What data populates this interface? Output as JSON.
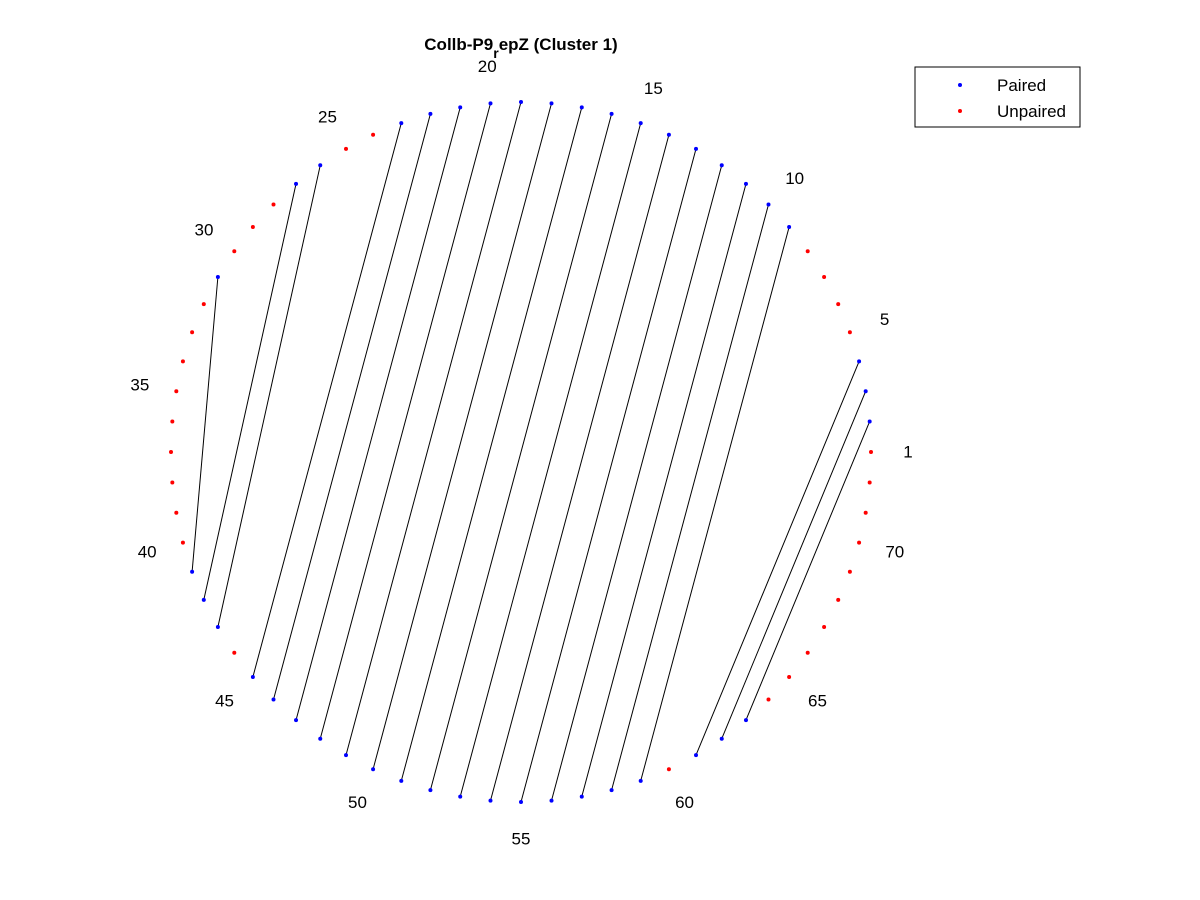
{
  "title": {
    "main": "Collb-P9",
    "subscript": "r",
    "rest": "epZ (Cluster 1)"
  },
  "legend": {
    "location": "top-right",
    "entries": [
      {
        "label": "Paired",
        "color": "#0000ff"
      },
      {
        "label": "Unpaired",
        "color": "#ff0000"
      }
    ]
  },
  "colors": {
    "paired": "#0000ff",
    "unpaired": "#ff0000",
    "bond": "#000000",
    "text": "#000000"
  },
  "chart_data": {
    "type": "circle-plot",
    "sequence_length": 72,
    "numbering": "counter-clockwise, starting at the right",
    "index_labels": [
      1,
      5,
      10,
      15,
      20,
      25,
      30,
      35,
      40,
      45,
      50,
      55,
      60,
      65,
      70
    ],
    "pairs": [
      [
        2,
        63
      ],
      [
        3,
        62
      ],
      [
        4,
        61
      ],
      [
        9,
        59
      ],
      [
        10,
        58
      ],
      [
        11,
        57
      ],
      [
        12,
        56
      ],
      [
        13,
        55
      ],
      [
        14,
        54
      ],
      [
        15,
        53
      ],
      [
        16,
        52
      ],
      [
        17,
        51
      ],
      [
        18,
        50
      ],
      [
        19,
        49
      ],
      [
        20,
        48
      ],
      [
        21,
        47
      ],
      [
        22,
        46
      ],
      [
        23,
        45
      ],
      [
        26,
        43
      ],
      [
        27,
        42
      ],
      [
        31,
        41
      ]
    ]
  }
}
